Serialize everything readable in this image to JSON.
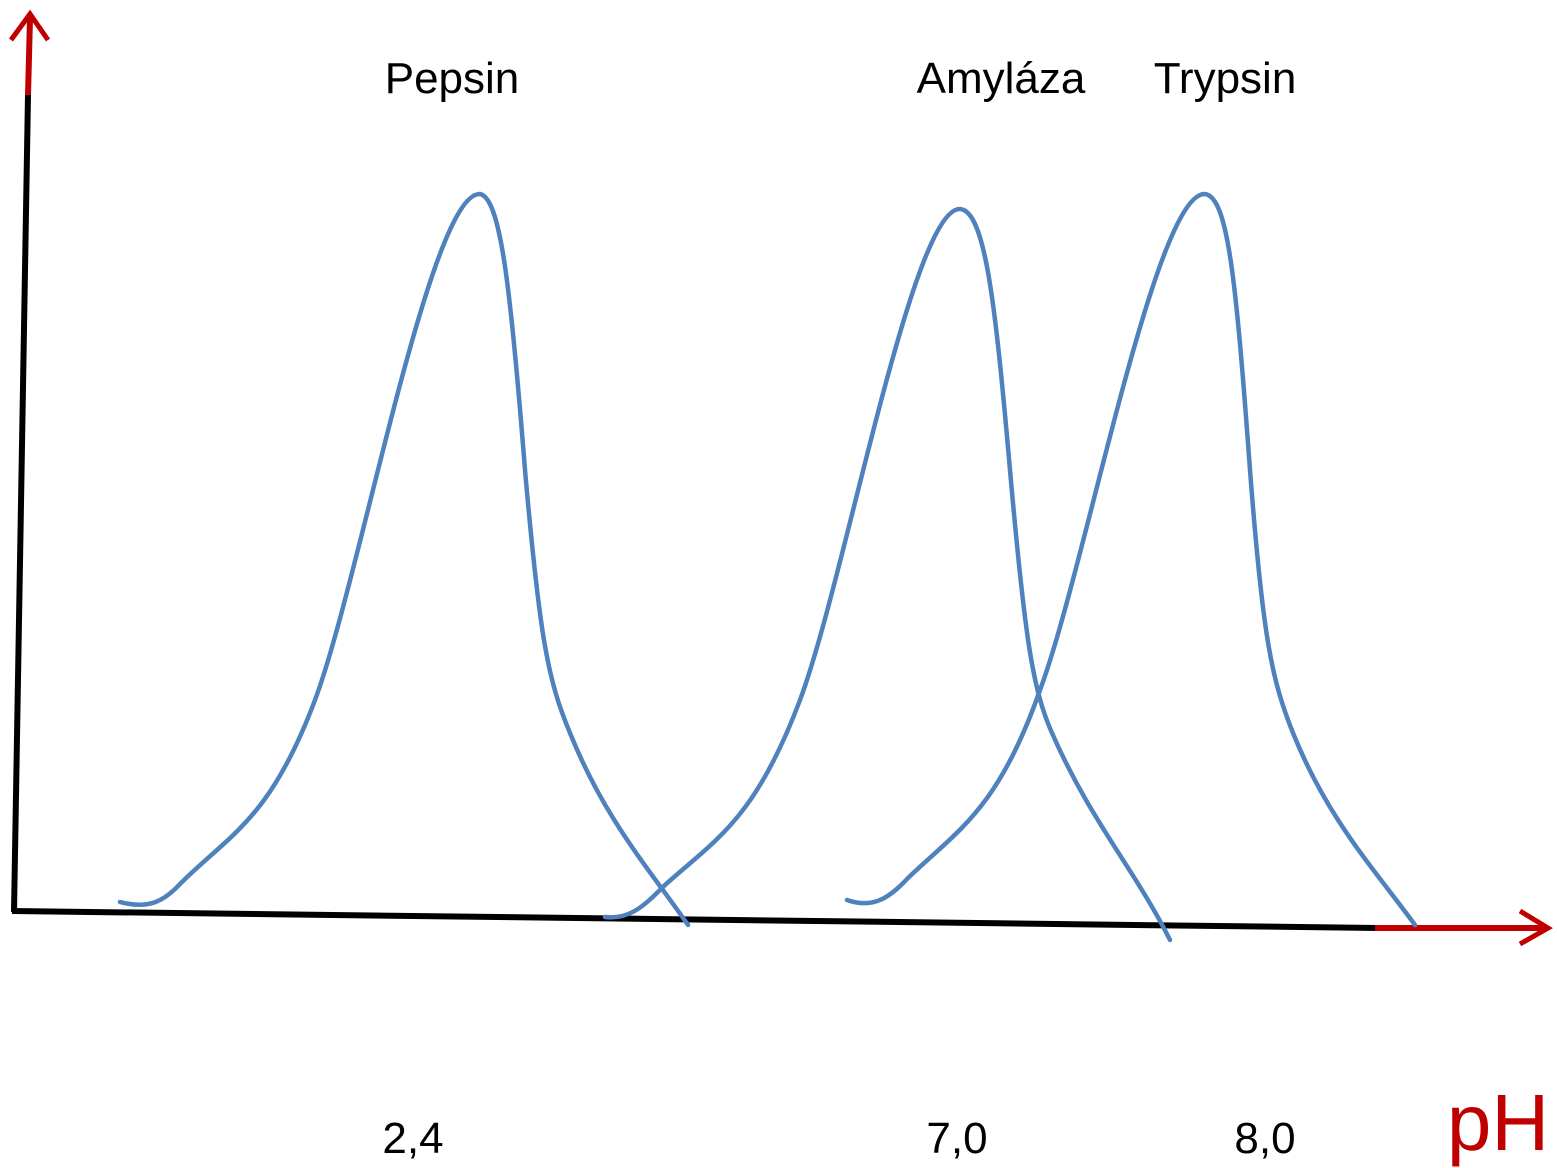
{
  "chart_data": {
    "type": "line",
    "title": "",
    "xlabel": "pH",
    "ylabel": "",
    "x_ticks": [
      "2,4",
      "7,0",
      "8,0"
    ],
    "series": [
      {
        "name": "Pepsin",
        "optimum_ph": 2.4
      },
      {
        "name": "Amyláza",
        "optimum_ph": 7.0
      },
      {
        "name": "Trypsin",
        "optimum_ph": 8.0
      }
    ],
    "grid": false,
    "legend": "none"
  },
  "colors": {
    "curve": "#4f81bd",
    "axis": "#000000",
    "arrow": "#c00000",
    "axis_title": "#c00000"
  }
}
